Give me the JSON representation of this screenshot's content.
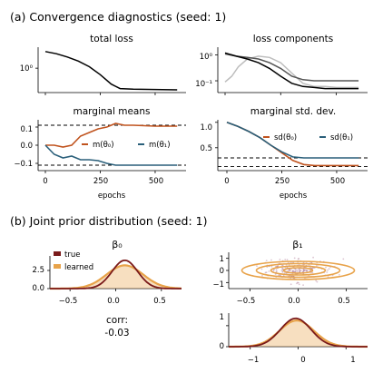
{
  "section_a": "(a) Convergence diagnostics (seed: 1)",
  "section_b": "(b) Joint prior distribution (seed: 1)",
  "panels": {
    "total_loss": {
      "title": "total loss",
      "yticks": [
        "10⁰"
      ]
    },
    "loss_components": {
      "title": "loss components",
      "yticks": [
        "10⁰",
        "10⁻¹"
      ]
    },
    "marginal_means": {
      "title": "marginal means",
      "xlabel": "epochs",
      "yticks": [
        "0.1",
        "0.0",
        "−0.1"
      ],
      "xticks": [
        "0",
        "250",
        "500"
      ],
      "legend": [
        "m(θ₀)",
        "m(θ₁)"
      ]
    },
    "marginal_sd": {
      "title": "marginal std. dev.",
      "xlabel": "epochs",
      "yticks": [
        "1.0",
        "0.5"
      ],
      "xticks": [
        "0",
        "250",
        "500"
      ],
      "legend": [
        "sd(θ₀)",
        "sd(θ₁)"
      ]
    },
    "beta0": {
      "title": "β₀",
      "yticks": [
        "2.5",
        "0.0"
      ],
      "xticks": [
        "−0.5",
        "0.0",
        "0.5"
      ],
      "legend": [
        "true",
        "learned"
      ],
      "corr_label": "corr:",
      "corr_value": "-0.03"
    },
    "beta1_joint": {
      "title": "β₁",
      "yticks": [
        "1",
        "0",
        "−1"
      ],
      "xticks": [
        "−0.5",
        "0.0",
        "0.5"
      ]
    },
    "beta1": {
      "yticks": [
        "1",
        "0"
      ],
      "xticks": [
        "−1",
        "0",
        "1"
      ]
    }
  },
  "colors": {
    "orange": "#c0531e",
    "teal": "#2a5f7a",
    "true": "#7a1a1a",
    "learned": "#e8a34a",
    "gray": "#bdbdbd"
  },
  "chart_data": [
    {
      "type": "line",
      "title": "total loss",
      "xlabel": "epochs",
      "yscale": "log",
      "xlim": [
        0,
        620
      ],
      "series": [
        {
          "x": [
            0,
            50,
            100,
            150,
            200,
            250,
            300,
            340,
            400,
            500,
            600
          ],
          "y": [
            3.0,
            2.6,
            2.1,
            1.6,
            1.1,
            0.65,
            0.35,
            0.26,
            0.25,
            0.245,
            0.24
          ]
        }
      ]
    },
    {
      "type": "line",
      "title": "loss components",
      "xlabel": "epochs",
      "yscale": "log",
      "xlim": [
        0,
        620
      ],
      "series": [
        {
          "x": [
            0,
            50,
            100,
            150,
            200,
            250,
            300,
            350,
            400,
            450,
            500,
            600
          ],
          "y": [
            1.2,
            0.9,
            0.7,
            0.5,
            0.3,
            0.15,
            0.08,
            0.06,
            0.055,
            0.05,
            0.05,
            0.05
          ]
        },
        {
          "x": [
            0,
            50,
            100,
            150,
            200,
            250,
            300,
            350,
            400,
            450,
            500,
            600
          ],
          "y": [
            1.1,
            0.9,
            0.8,
            0.7,
            0.5,
            0.3,
            0.15,
            0.11,
            0.1,
            0.1,
            0.1,
            0.1
          ]
        },
        {
          "x": [
            0,
            30,
            60,
            100,
            150,
            200,
            250,
            300,
            350,
            400,
            450,
            500,
            600
          ],
          "y": [
            0.09,
            0.15,
            0.35,
            0.7,
            0.9,
            0.8,
            0.5,
            0.2,
            0.08,
            0.06,
            0.06,
            0.055,
            0.055
          ]
        }
      ]
    },
    {
      "type": "line",
      "title": "marginal means",
      "xlabel": "epochs",
      "ylim": [
        -0.14,
        0.14
      ],
      "xlim": [
        0,
        620
      ],
      "reference_lines": [
        0.11,
        -0.11
      ],
      "series": [
        {
          "name": "m(θ₀)",
          "x": [
            0,
            40,
            80,
            120,
            160,
            200,
            240,
            280,
            320,
            360,
            400,
            500,
            600
          ],
          "y": [
            0,
            0,
            -0.01,
            0.0,
            0.05,
            0.07,
            0.09,
            0.1,
            0.12,
            0.11,
            0.11,
            0.105,
            0.105
          ]
        },
        {
          "name": "m(θ₁)",
          "x": [
            0,
            40,
            80,
            120,
            160,
            200,
            240,
            280,
            320,
            360,
            400,
            500,
            600
          ],
          "y": [
            0,
            -0.05,
            -0.07,
            -0.06,
            -0.08,
            -0.08,
            -0.085,
            -0.1,
            -0.11,
            -0.11,
            -0.11,
            -0.11,
            -0.11
          ]
        }
      ]
    },
    {
      "type": "line",
      "title": "marginal std. dev.",
      "xlabel": "epochs",
      "ylim": [
        0.05,
        1.05
      ],
      "xlim": [
        0,
        620
      ],
      "reference_lines": [
        0.3,
        0.13
      ],
      "series": [
        {
          "name": "sd(θ₀)",
          "x": [
            0,
            50,
            100,
            150,
            200,
            250,
            300,
            350,
            400,
            500,
            600
          ],
          "y": [
            1.0,
            0.92,
            0.82,
            0.7,
            0.55,
            0.4,
            0.25,
            0.17,
            0.15,
            0.15,
            0.15
          ]
        },
        {
          "name": "sd(θ₁)",
          "x": [
            0,
            50,
            100,
            150,
            200,
            250,
            300,
            350,
            400,
            500,
            600
          ],
          "y": [
            1.0,
            0.92,
            0.82,
            0.7,
            0.55,
            0.42,
            0.32,
            0.3,
            0.3,
            0.3,
            0.3
          ]
        }
      ]
    },
    {
      "type": "area",
      "title": "β₀",
      "xlim": [
        -0.72,
        0.72
      ],
      "ylim": [
        0,
        4.5
      ],
      "series": [
        {
          "name": "true",
          "x": [
            -0.7,
            -0.5,
            -0.3,
            -0.2,
            -0.1,
            0.0,
            0.1,
            0.2,
            0.3,
            0.4,
            0.5,
            0.7
          ],
          "y": [
            0,
            0.02,
            0.3,
            0.9,
            2.0,
            3.3,
            3.9,
            3.2,
            1.8,
            0.7,
            0.15,
            0
          ]
        },
        {
          "name": "learned",
          "x": [
            -0.7,
            -0.5,
            -0.3,
            -0.2,
            -0.1,
            0.0,
            0.1,
            0.2,
            0.3,
            0.4,
            0.5,
            0.7
          ],
          "y": [
            0,
            0.1,
            0.5,
            1.1,
            1.8,
            2.6,
            3.2,
            2.8,
            1.9,
            1.0,
            0.4,
            0.05
          ]
        }
      ]
    },
    {
      "type": "scatter",
      "title": "β₁",
      "xlim": [
        -0.72,
        0.72
      ],
      "ylim": [
        -1.5,
        1.5
      ]
    },
    {
      "type": "area",
      "xlim": [
        -1.45,
        1.45
      ],
      "ylim": [
        0,
        1.6
      ],
      "series": [
        {
          "name": "true",
          "x": [
            -1.4,
            -1.0,
            -0.6,
            -0.4,
            -0.2,
            0.0,
            0.2,
            0.4,
            0.6,
            0.8,
            1.0,
            1.4
          ],
          "y": [
            0,
            0.05,
            0.4,
            0.8,
            1.25,
            1.35,
            1.15,
            0.8,
            0.45,
            0.2,
            0.06,
            0
          ]
        },
        {
          "name": "learned",
          "x": [
            -1.4,
            -1.0,
            -0.6,
            -0.4,
            -0.2,
            0.0,
            0.2,
            0.4,
            0.6,
            0.8,
            1.0,
            1.4
          ],
          "y": [
            0,
            0.08,
            0.5,
            0.9,
            1.2,
            1.25,
            1.1,
            0.85,
            0.5,
            0.25,
            0.08,
            0
          ]
        }
      ]
    }
  ]
}
